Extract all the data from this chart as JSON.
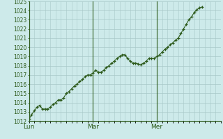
{
  "background_color": "#cdeaea",
  "plot_bg_color": "#cdeaea",
  "line_color": "#2d5a1b",
  "marker_color": "#2d5a1b",
  "grid_color": "#a8c8c8",
  "axis_label_color": "#2d5a1b",
  "spine_color": "#2d5a1b",
  "ylim": [
    1012,
    1025
  ],
  "yticks": [
    1012,
    1013,
    1014,
    1015,
    1016,
    1017,
    1018,
    1019,
    1020,
    1021,
    1022,
    1023,
    1024
  ],
  "xlim": [
    0,
    144
  ],
  "xtick_positions": [
    0,
    48,
    96
  ],
  "xtick_labels": [
    "Lun",
    "Mar",
    "Mer"
  ],
  "vline_positions": [
    0,
    48,
    96
  ],
  "minor_x_interval": 4,
  "pressure_values": [
    1012.2,
    1012.7,
    1013.1,
    1013.5,
    1013.7,
    1013.3,
    1013.3,
    1013.3,
    1013.5,
    1013.8,
    1014.0,
    1014.3,
    1014.3,
    1014.5,
    1015.0,
    1015.2,
    1015.5,
    1015.8,
    1016.0,
    1016.3,
    1016.5,
    1016.8,
    1017.0,
    1017.0,
    1017.2,
    1017.5,
    1017.3,
    1017.3,
    1017.5,
    1017.8,
    1018.0,
    1018.3,
    1018.5,
    1018.8,
    1019.0,
    1019.2,
    1019.2,
    1018.8,
    1018.5,
    1018.3,
    1018.3,
    1018.2,
    1018.1,
    1018.3,
    1018.5,
    1018.8,
    1018.8,
    1018.8,
    1019.0,
    1019.2,
    1019.5,
    1019.8,
    1020.0,
    1020.3,
    1020.5,
    1020.8,
    1021.0,
    1021.5,
    1022.0,
    1022.5,
    1023.0,
    1023.3,
    1023.8,
    1024.1,
    1024.3,
    1024.4
  ],
  "pressure_x": [
    0,
    2,
    4,
    6,
    8,
    10,
    12,
    14,
    16,
    18,
    20,
    22,
    24,
    26,
    28,
    30,
    32,
    34,
    36,
    38,
    40,
    42,
    44,
    46,
    48,
    50,
    52,
    54,
    56,
    58,
    60,
    62,
    64,
    66,
    68,
    70,
    72,
    74,
    76,
    78,
    80,
    82,
    84,
    86,
    88,
    90,
    92,
    94,
    96,
    98,
    100,
    102,
    104,
    106,
    108,
    110,
    112,
    114,
    116,
    118,
    120,
    122,
    124,
    126,
    128,
    130
  ],
  "ytick_fontsize": 5.5,
  "xtick_fontsize": 6.5
}
